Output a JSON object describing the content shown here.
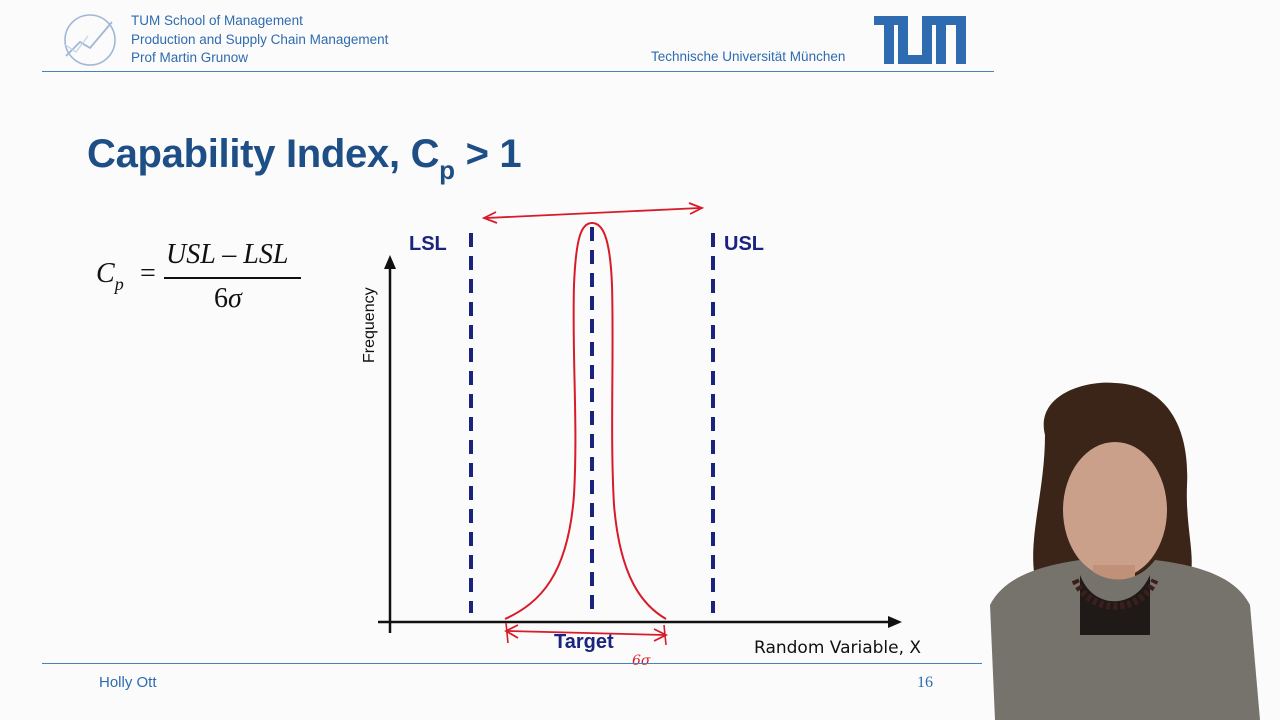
{
  "header": {
    "school": "TUM School of Management",
    "chair": "Production and Supply Chain Management",
    "professor": "Prof Martin Grunow",
    "university": "Technische Universität München",
    "logo_icon": "tum-logo",
    "accent": "#2e6bb0"
  },
  "slide": {
    "title_main": "Capability Index, C",
    "title_sub": "p",
    "title_tail": " > 1",
    "title_color": "#1d4f86"
  },
  "formula": {
    "lhs": "C",
    "lhs_sub": "p",
    "eq": "=",
    "numerator": "USL – LSL",
    "denominator_num": "6",
    "denominator_sym": "σ"
  },
  "chart": {
    "y_axis_label": "Frequency",
    "x_axis_label": "Random Variable, X",
    "lsl_label": "LSL",
    "usl_label": "USL",
    "target_label": "Target",
    "annotation_width": "6σ",
    "spec_line_color": "#1a237e",
    "ink_color": "#d81b2a"
  },
  "footer": {
    "presenter": "Holly Ott",
    "page": "16"
  }
}
